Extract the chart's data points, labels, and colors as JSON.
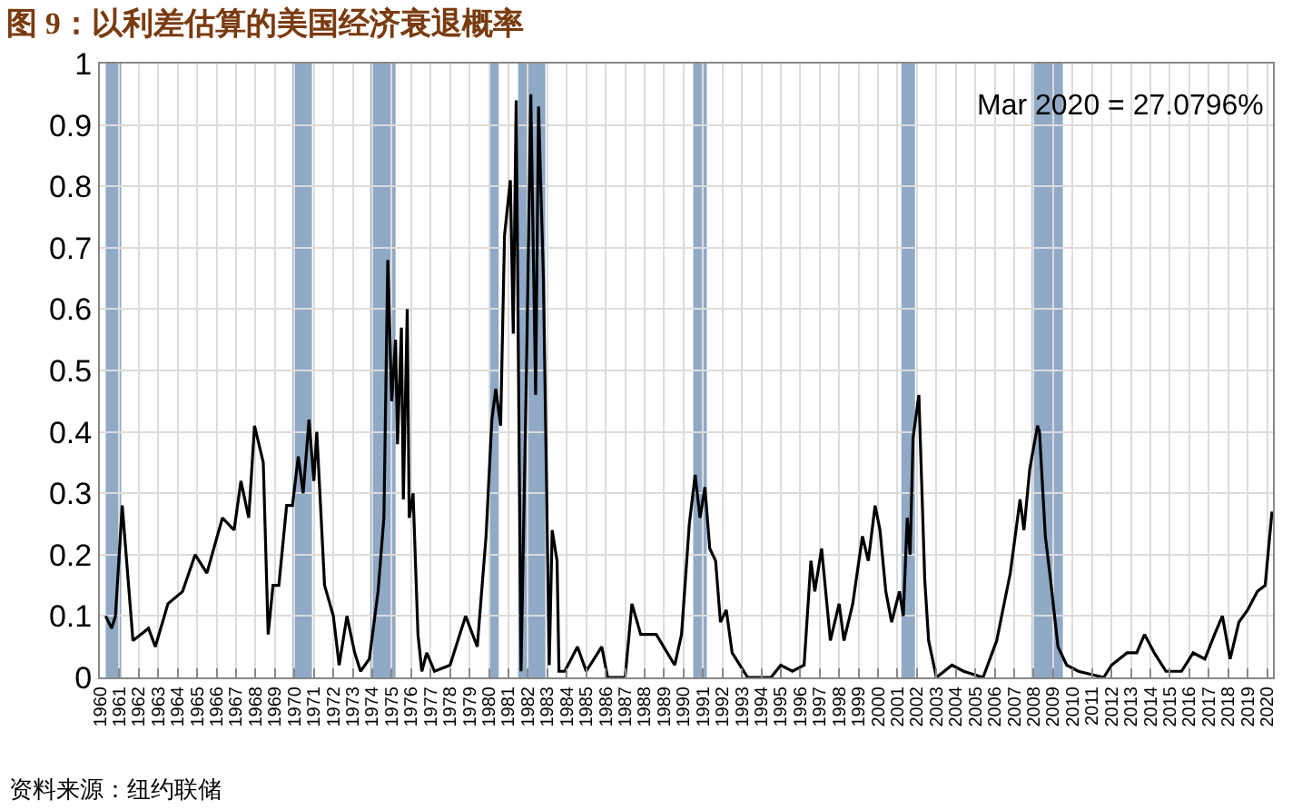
{
  "chart_data": {
    "type": "line",
    "title": "图 9：以利差估算的美国经济衰退概率",
    "x": [
      1960.3,
      1960.6,
      1960.8,
      1961.15,
      1961.5,
      1961.7,
      1962.1,
      1962.5,
      1962.85,
      1963.5,
      1964.25,
      1964.9,
      1965.5,
      1966.3,
      1966.9,
      1967.25,
      1967.65,
      1967.95,
      1968.4,
      1968.65,
      1968.9,
      1969.2,
      1969.6,
      1969.9,
      1970.2,
      1970.45,
      1970.75,
      1971.0,
      1971.15,
      1971.55,
      1972.0,
      1972.3,
      1972.7,
      1973.1,
      1973.4,
      1973.85,
      1974.3,
      1974.6,
      1974.8,
      1975.0,
      1975.2,
      1975.3,
      1975.5,
      1975.6,
      1975.8,
      1975.9,
      1976.1,
      1976.35,
      1976.55,
      1976.8,
      1977.2,
      1978.0,
      1978.8,
      1979.4,
      1979.85,
      1980.15,
      1980.35,
      1980.6,
      1980.8,
      1981.1,
      1981.25,
      1981.4,
      1981.65,
      1981.95,
      1982.15,
      1982.4,
      1982.55,
      1982.8,
      1983.1,
      1983.25,
      1983.5,
      1983.6,
      1983.9,
      1984.55,
      1985.0,
      1985.8,
      1986.1,
      1987.0,
      1987.35,
      1987.8,
      1988.1,
      1988.6,
      1989.55,
      1989.9,
      1990.3,
      1990.6,
      1990.85,
      1991.1,
      1991.35,
      1991.65,
      1991.9,
      1992.2,
      1992.5,
      1993.3,
      1994.5,
      1995.0,
      1995.6,
      1996.2,
      1996.55,
      1996.75,
      1997.1,
      1997.55,
      1998.0,
      1998.25,
      1998.7,
      1999.2,
      1999.5,
      1999.85,
      2000.1,
      2000.4,
      2000.7,
      2001.1,
      2001.3,
      2001.5,
      2001.65,
      2001.8,
      2002.1,
      2002.4,
      2002.6,
      2003.0,
      2003.8,
      2004.4,
      2005.4,
      2006.1,
      2006.8,
      2007.3,
      2007.5,
      2007.8,
      2008.2,
      2008.3,
      2008.6,
      2008.9,
      2009.25,
      2009.7,
      2010.3,
      2011.6,
      2012.0,
      2012.8,
      2013.3,
      2013.7,
      2014.2,
      2014.8,
      2015.6,
      2016.2,
      2016.8,
      2017.3,
      2017.7,
      2018.1,
      2018.55,
      2019.0,
      2019.5,
      2019.9,
      2020.25
    ],
    "series": [
      {
        "color": "#000000",
        "values": [
          0.1,
          0.08,
          0.1,
          0.28,
          0.14,
          0.06,
          0.07,
          0.08,
          0.05,
          0.12,
          0.14,
          0.2,
          0.17,
          0.26,
          0.24,
          0.32,
          0.26,
          0.41,
          0.35,
          0.07,
          0.15,
          0.15,
          0.28,
          0.28,
          0.36,
          0.3,
          0.42,
          0.32,
          0.4,
          0.15,
          0.1,
          0.02,
          0.1,
          0.04,
          0.01,
          0.03,
          0.14,
          0.26,
          0.68,
          0.45,
          0.55,
          0.38,
          0.57,
          0.29,
          0.6,
          0.26,
          0.3,
          0.07,
          0.01,
          0.04,
          0.01,
          0.02,
          0.1,
          0.05,
          0.23,
          0.42,
          0.47,
          0.41,
          0.72,
          0.81,
          0.56,
          0.94,
          0.01,
          0.54,
          0.95,
          0.46,
          0.93,
          0.65,
          0.02,
          0.24,
          0.19,
          0.01,
          0.01,
          0.05,
          0.01,
          0.05,
          0.0,
          0.0,
          0.12,
          0.07,
          0.07,
          0.07,
          0.02,
          0.07,
          0.25,
          0.33,
          0.26,
          0.31,
          0.21,
          0.19,
          0.09,
          0.11,
          0.04,
          0.0,
          0.0,
          0.02,
          0.01,
          0.02,
          0.19,
          0.14,
          0.21,
          0.06,
          0.12,
          0.06,
          0.12,
          0.23,
          0.19,
          0.28,
          0.24,
          0.14,
          0.09,
          0.14,
          0.1,
          0.26,
          0.2,
          0.39,
          0.46,
          0.16,
          0.06,
          0.0,
          0.02,
          0.01,
          0.0,
          0.06,
          0.17,
          0.29,
          0.24,
          0.34,
          0.41,
          0.4,
          0.23,
          0.15,
          0.05,
          0.02,
          0.01,
          0.0,
          0.02,
          0.04,
          0.04,
          0.07,
          0.04,
          0.01,
          0.01,
          0.04,
          0.03,
          0.07,
          0.1,
          0.03,
          0.09,
          0.11,
          0.14,
          0.15,
          0.27
        ]
      }
    ],
    "xlim": [
      1960,
      2020.3
    ],
    "xticks": [
      1960,
      1961,
      1962,
      1963,
      1964,
      1965,
      1966,
      1967,
      1968,
      1969,
      1970,
      1971,
      1972,
      1973,
      1974,
      1975,
      1976,
      1977,
      1978,
      1979,
      1980,
      1981,
      1982,
      1983,
      1984,
      1985,
      1986,
      1987,
      1988,
      1989,
      1990,
      1991,
      1992,
      1993,
      1994,
      1995,
      1996,
      1997,
      1998,
      1999,
      2000,
      2001,
      2002,
      2003,
      2004,
      2005,
      2006,
      2007,
      2008,
      2009,
      2010,
      2011,
      2012,
      2013,
      2014,
      2015,
      2016,
      2017,
      2018,
      2019,
      2020
    ],
    "ylim": [
      0,
      1
    ],
    "yticks": [
      0,
      0.1,
      0.2,
      0.3,
      0.4,
      0.5,
      0.6,
      0.7,
      0.8,
      0.9,
      1
    ],
    "grid": true,
    "bands": [
      {
        "axis": "x",
        "from": 1960.3,
        "to": 1961.1,
        "color": "#90a9c6"
      },
      {
        "axis": "x",
        "from": 1969.9,
        "to": 1970.9,
        "color": "#90a9c6"
      },
      {
        "axis": "x",
        "from": 1973.9,
        "to": 1975.2,
        "color": "#90a9c6"
      },
      {
        "axis": "x",
        "from": 1980.0,
        "to": 1980.5,
        "color": "#90a9c6"
      },
      {
        "axis": "x",
        "from": 1981.5,
        "to": 1982.9,
        "color": "#90a9c6"
      },
      {
        "axis": "x",
        "from": 1990.5,
        "to": 1991.2,
        "color": "#90a9c6"
      },
      {
        "axis": "x",
        "from": 2001.2,
        "to": 2001.9,
        "color": "#90a9c6"
      },
      {
        "axis": "x",
        "from": 2007.9,
        "to": 2009.5,
        "color": "#90a9c6"
      }
    ],
    "annotations": [
      "Mar 2020 = 27.0796%",
      "资料来源：纽约联储"
    ]
  }
}
